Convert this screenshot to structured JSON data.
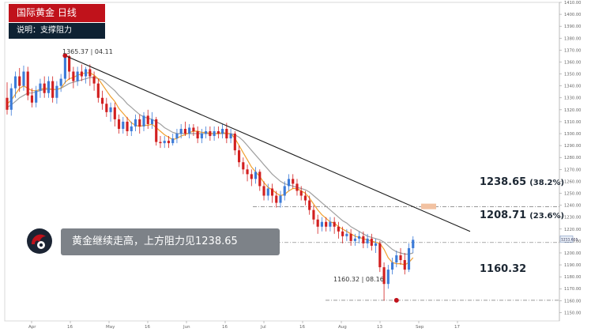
{
  "title": "国际黄金  日线",
  "subtitle": "说明：支撑阻力",
  "banner_text": "黄金继续走高，上方阻力见1238.65",
  "annotations": {
    "high": {
      "price": "1365.37",
      "date": "04.11"
    },
    "low": {
      "price": "1160.32",
      "date": "08.16"
    }
  },
  "levels": [
    {
      "price": "1238.65",
      "pct": "(38.2%)"
    },
    {
      "price": "1208.71",
      "pct": "(23.6%)"
    },
    {
      "price": "1160.32",
      "pct": ""
    }
  ],
  "current_price_tag": "1211.655",
  "colors": {
    "up": "#3c7bd8",
    "down": "#d21f1f",
    "ma_fast": "#f0a030",
    "ma_slow": "#a0a0a0",
    "trendline": "#1a1a1a",
    "title_bg": "#c0121b",
    "subtitle_bg": "#0e2233"
  },
  "chart_data": {
    "type": "candlestick",
    "ylim": [
      1143,
      1410
    ],
    "y_ticks": [
      1150,
      1160,
      1170,
      1180,
      1190,
      1200,
      1210,
      1220,
      1230,
      1240,
      1250,
      1260,
      1270,
      1280,
      1290,
      1300,
      1310,
      1320,
      1330,
      1340,
      1350,
      1360,
      1370,
      1380,
      1390,
      1400,
      1410
    ],
    "x_ticks": [
      "Apr",
      "16",
      "May",
      "16",
      "Jun",
      "16",
      "Jul",
      "16",
      "Aug",
      "13",
      "Sep",
      "17"
    ],
    "resistance_levels": [
      1238.65,
      1208.71
    ],
    "support_levels": [
      1160.32
    ],
    "candles": [
      [
        1330,
        1320,
        1343,
        1316
      ],
      [
        1320,
        1338,
        1342,
        1315
      ],
      [
        1338,
        1348,
        1352,
        1330
      ],
      [
        1348,
        1340,
        1355,
        1335
      ],
      [
        1340,
        1352,
        1357,
        1336
      ],
      [
        1352,
        1332,
        1356,
        1328
      ],
      [
        1332,
        1326,
        1338,
        1322
      ],
      [
        1326,
        1336,
        1340,
        1322
      ],
      [
        1336,
        1342,
        1346,
        1330
      ],
      [
        1342,
        1334,
        1348,
        1330
      ],
      [
        1334,
        1344,
        1348,
        1330
      ],
      [
        1344,
        1330,
        1348,
        1326
      ],
      [
        1330,
        1340,
        1344,
        1325
      ],
      [
        1340,
        1346,
        1350,
        1335
      ],
      [
        1346,
        1365,
        1366,
        1342
      ],
      [
        1365,
        1352,
        1366,
        1345
      ],
      [
        1352,
        1344,
        1356,
        1338
      ],
      [
        1344,
        1352,
        1356,
        1340
      ],
      [
        1352,
        1348,
        1358,
        1344
      ],
      [
        1348,
        1354,
        1356,
        1342
      ],
      [
        1354,
        1348,
        1358,
        1340
      ],
      [
        1348,
        1342,
        1352,
        1336
      ],
      [
        1342,
        1330,
        1346,
        1326
      ],
      [
        1330,
        1325,
        1336,
        1320
      ],
      [
        1325,
        1318,
        1330,
        1314
      ],
      [
        1318,
        1322,
        1326,
        1310
      ],
      [
        1322,
        1312,
        1326,
        1306
      ],
      [
        1312,
        1304,
        1316,
        1300
      ],
      [
        1304,
        1310,
        1314,
        1300
      ],
      [
        1310,
        1302,
        1314,
        1298
      ],
      [
        1302,
        1306,
        1310,
        1298
      ],
      [
        1306,
        1312,
        1316,
        1302
      ],
      [
        1312,
        1306,
        1316,
        1300
      ],
      [
        1306,
        1315,
        1318,
        1302
      ],
      [
        1315,
        1308,
        1320,
        1304
      ],
      [
        1308,
        1312,
        1318,
        1304
      ],
      [
        1312,
        1293,
        1314,
        1290
      ],
      [
        1293,
        1292,
        1298,
        1288
      ],
      [
        1292,
        1294,
        1298,
        1288
      ],
      [
        1294,
        1292,
        1298,
        1288
      ],
      [
        1292,
        1296,
        1300,
        1290
      ],
      [
        1296,
        1300,
        1304,
        1292
      ],
      [
        1300,
        1304,
        1308,
        1296
      ],
      [
        1304,
        1300,
        1310,
        1298
      ],
      [
        1300,
        1305,
        1308,
        1296
      ],
      [
        1305,
        1302,
        1308,
        1298
      ],
      [
        1302,
        1296,
        1306,
        1292
      ],
      [
        1296,
        1300,
        1304,
        1292
      ],
      [
        1300,
        1302,
        1306,
        1296
      ],
      [
        1302,
        1298,
        1306,
        1294
      ],
      [
        1298,
        1302,
        1306,
        1294
      ],
      [
        1302,
        1300,
        1306,
        1296
      ],
      [
        1300,
        1304,
        1308,
        1296
      ],
      [
        1304,
        1296,
        1309,
        1292
      ],
      [
        1296,
        1300,
        1304,
        1292
      ],
      [
        1300,
        1286,
        1302,
        1282
      ],
      [
        1286,
        1276,
        1290,
        1272
      ],
      [
        1276,
        1270,
        1280,
        1266
      ],
      [
        1270,
        1266,
        1274,
        1260
      ],
      [
        1266,
        1262,
        1270,
        1256
      ],
      [
        1262,
        1268,
        1272,
        1258
      ],
      [
        1268,
        1256,
        1270,
        1252
      ],
      [
        1256,
        1248,
        1260,
        1244
      ],
      [
        1248,
        1254,
        1258,
        1244
      ],
      [
        1254,
        1248,
        1258,
        1242
      ],
      [
        1248,
        1242,
        1252,
        1238
      ],
      [
        1242,
        1248,
        1252,
        1238
      ],
      [
        1248,
        1256,
        1260,
        1244
      ],
      [
        1256,
        1262,
        1266,
        1252
      ],
      [
        1262,
        1258,
        1266,
        1254
      ],
      [
        1258,
        1252,
        1262,
        1248
      ],
      [
        1252,
        1248,
        1256,
        1244
      ],
      [
        1248,
        1244,
        1252,
        1240
      ],
      [
        1244,
        1236,
        1248,
        1232
      ],
      [
        1236,
        1228,
        1240,
        1224
      ],
      [
        1228,
        1222,
        1232,
        1216
      ],
      [
        1222,
        1226,
        1230,
        1218
      ],
      [
        1226,
        1222,
        1230,
        1218
      ],
      [
        1222,
        1226,
        1230,
        1218
      ],
      [
        1226,
        1222,
        1230,
        1216
      ],
      [
        1222,
        1218,
        1226,
        1212
      ],
      [
        1218,
        1214,
        1222,
        1208
      ],
      [
        1214,
        1216,
        1220,
        1210
      ],
      [
        1216,
        1210,
        1220,
        1206
      ],
      [
        1210,
        1212,
        1216,
        1206
      ],
      [
        1212,
        1214,
        1218,
        1208
      ],
      [
        1214,
        1208,
        1218,
        1204
      ],
      [
        1208,
        1212,
        1216,
        1204
      ],
      [
        1212,
        1206,
        1216,
        1202
      ],
      [
        1206,
        1208,
        1212,
        1200
      ],
      [
        1208,
        1188,
        1210,
        1184
      ],
      [
        1188,
        1174,
        1192,
        1160
      ],
      [
        1174,
        1186,
        1190,
        1170
      ],
      [
        1186,
        1192,
        1196,
        1182
      ],
      [
        1192,
        1198,
        1202,
        1188
      ],
      [
        1198,
        1194,
        1204,
        1190
      ],
      [
        1194,
        1186,
        1200,
        1182
      ],
      [
        1186,
        1204,
        1208,
        1184
      ],
      [
        1204,
        1211,
        1214,
        1200
      ]
    ],
    "ma_fast": [
      1325,
      1328,
      1333,
      1338,
      1340,
      1338,
      1336,
      1336,
      1337,
      1338,
      1338,
      1337,
      1337,
      1338,
      1343,
      1346,
      1347,
      1349,
      1350,
      1351,
      1351,
      1349,
      1346,
      1341,
      1336,
      1331,
      1327,
      1321,
      1317,
      1313,
      1309,
      1307,
      1306,
      1307,
      1307,
      1308,
      1305,
      1302,
      1299,
      1297,
      1295,
      1296,
      1298,
      1299,
      1301,
      1302,
      1302,
      1301,
      1301,
      1300,
      1300,
      1300,
      1301,
      1300,
      1300,
      1296,
      1290,
      1284,
      1278,
      1272,
      1268,
      1264,
      1259,
      1255,
      1253,
      1250,
      1248,
      1249,
      1252,
      1254,
      1254,
      1252,
      1250,
      1246,
      1241,
      1236,
      1232,
      1229,
      1226,
      1225,
      1222,
      1220,
      1218,
      1216,
      1214,
      1213,
      1212,
      1211,
      1210,
      1209,
      1208,
      1203,
      1196,
      1192,
      1191,
      1191,
      1190,
      1192,
      1196
    ],
    "ma_slow": [
      1322,
      1324,
      1327,
      1330,
      1332,
      1334,
      1334,
      1335,
      1336,
      1337,
      1337,
      1337,
      1337,
      1338,
      1340,
      1342,
      1343,
      1344,
      1345,
      1346,
      1347,
      1347,
      1346,
      1345,
      1342,
      1339,
      1336,
      1332,
      1329,
      1325,
      1322,
      1319,
      1316,
      1314,
      1313,
      1312,
      1310,
      1308,
      1305,
      1303,
      1301,
      1300,
      1300,
      1300,
      1300,
      1300,
      1300,
      1300,
      1300,
      1300,
      1300,
      1300,
      1300,
      1300,
      1300,
      1299,
      1297,
      1294,
      1290,
      1286,
      1282,
      1278,
      1274,
      1270,
      1266,
      1263,
      1260,
      1258,
      1257,
      1256,
      1255,
      1254,
      1253,
      1251,
      1248,
      1245,
      1242,
      1239,
      1236,
      1233,
      1230,
      1227,
      1225,
      1222,
      1220,
      1218,
      1216,
      1214,
      1213,
      1212,
      1211,
      1209,
      1206,
      1203,
      1201,
      1200,
      1199,
      1199,
      1200
    ],
    "trendline": [
      [
        1365.37,
        0.14
      ],
      [
        1218,
        1.0
      ]
    ],
    "high_point": {
      "value": 1365.37,
      "date": "04.11"
    },
    "low_point": {
      "value": 1160.32,
      "date": "08.16"
    }
  }
}
